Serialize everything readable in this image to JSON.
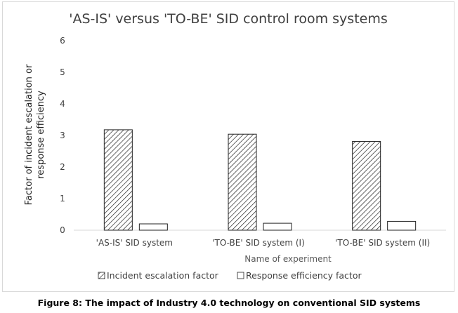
{
  "caption": "Figure 8: The impact of Industry 4.0 technology on conventional SID systems",
  "chart_data": {
    "type": "bar",
    "title": "'AS-IS' versus 'TO-BE' SID control room systems",
    "xlabel": "Name of experiment",
    "ylabel_lines": [
      "Factor of incident escalation or",
      "response efficiency"
    ],
    "categories": [
      "'AS-IS' SID system",
      "'TO-BE' SID system (I)",
      "'TO-BE' SID system (II)"
    ],
    "ylim": [
      0,
      6
    ],
    "yticks": [
      0,
      1,
      2,
      3,
      4,
      5,
      6
    ],
    "grid": false,
    "legend_position": "bottom",
    "series": [
      {
        "name": "Incident escalation factor",
        "values": [
          3.18,
          3.04,
          2.81
        ],
        "fill": "hatched"
      },
      {
        "name": "Response efficiency factor",
        "values": [
          0.2,
          0.22,
          0.28
        ],
        "fill": "white"
      }
    ]
  }
}
